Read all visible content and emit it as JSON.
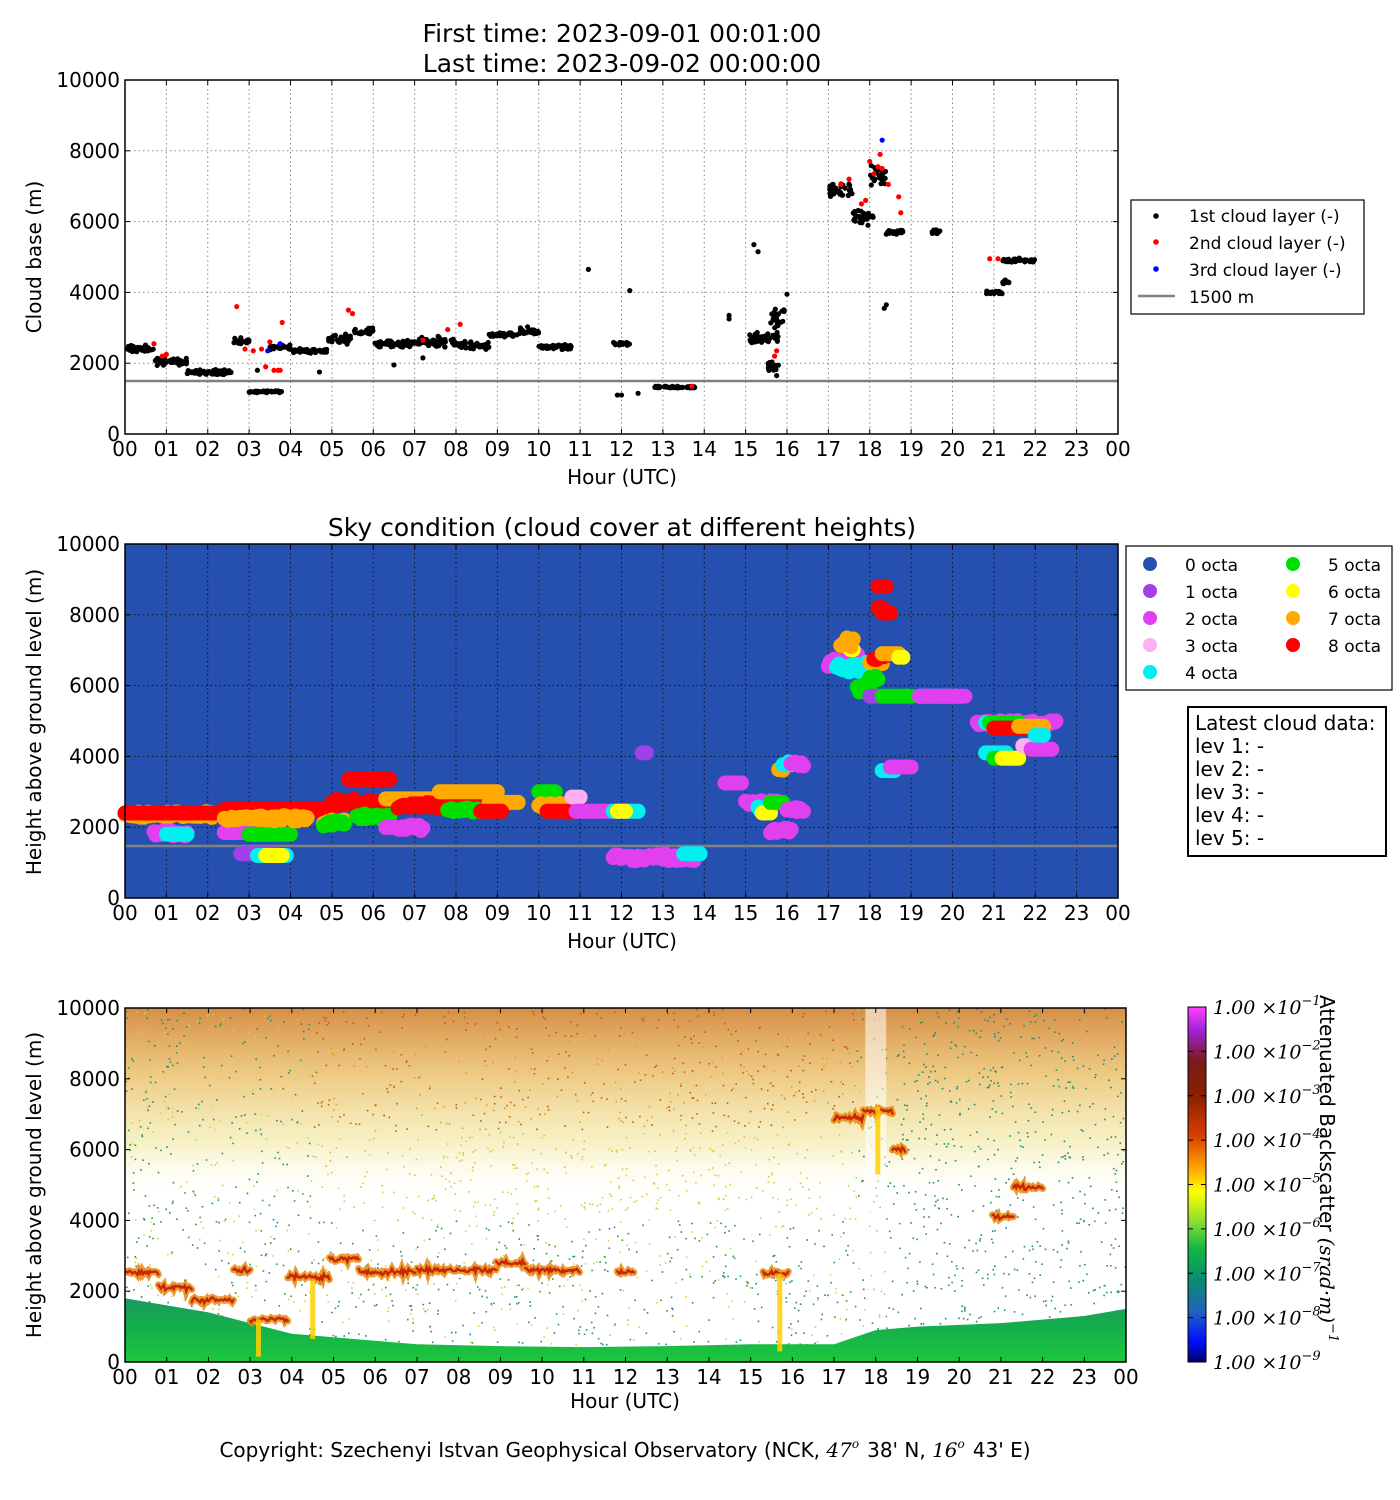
{
  "header": {
    "first_time": "First time: 2023-09-01 00:01:00",
    "last_time": "Last time: 2023-09-02 00:00:00"
  },
  "x_ticks": [
    "00",
    "01",
    "02",
    "03",
    "04",
    "05",
    "06",
    "07",
    "08",
    "09",
    "10",
    "11",
    "12",
    "13",
    "14",
    "15",
    "16",
    "17",
    "18",
    "19",
    "20",
    "21",
    "22",
    "23",
    "00"
  ],
  "y_ticks": [
    "0",
    "2000",
    "4000",
    "6000",
    "8000",
    "10000"
  ],
  "xlabel": "Hour (UTC)",
  "panel1": {
    "ylabel": "Cloud base (m)",
    "legend": [
      "1st cloud layer (-)",
      "2nd cloud layer (-)",
      "3rd cloud layer (-)",
      "1500 m"
    ]
  },
  "panel2": {
    "title": "Sky condition (cloud cover at different heights)",
    "ylabel": "Height above ground level (m)",
    "legend": [
      "0 octa",
      "1 octa",
      "2 octa",
      "3 octa",
      "4 octa",
      "5 octa",
      "6 octa",
      "7 octa",
      "8 octa"
    ],
    "latest": [
      "Latest cloud data:",
      "lev 1: -",
      "lev 2: -",
      "lev 3: -",
      "lev 4: -",
      "lev 5: -"
    ]
  },
  "panel3": {
    "ylabel": "Height above ground level (m)",
    "colorbar_label": "Attenuated Backscatter",
    "colorbar_unit": "(srad·m)",
    "colorbar_exp": "−1",
    "colorbar_ticks": [
      {
        "mant": "1.00",
        "exp": "−1"
      },
      {
        "mant": "1.00",
        "exp": "−2"
      },
      {
        "mant": "1.00",
        "exp": "−3"
      },
      {
        "mant": "1.00",
        "exp": "−4"
      },
      {
        "mant": "1.00",
        "exp": "−5"
      },
      {
        "mant": "1.00",
        "exp": "−6"
      },
      {
        "mant": "1.00",
        "exp": "−7"
      },
      {
        "mant": "1.00",
        "exp": "−8"
      },
      {
        "mant": "1.00",
        "exp": "−9"
      }
    ]
  },
  "copyright": {
    "a": "Copyright: Szechenyi Istvan Geophysical Observatory (NCK,",
    "lat_deg": "47",
    "lat_min": "38' N,",
    "lon_deg": "16",
    "lon_min": "43' E)"
  },
  "colors": {
    "layer1": "#000000",
    "layer2": "#ff0000",
    "layer3": "#0000ff",
    "ref_line": "#808080",
    "sky_bg": "#2650b0",
    "octa": [
      "#2650b0",
      "#a040e8",
      "#e040f0",
      "#ffb0f0",
      "#00f0f0",
      "#00e000",
      "#ffff00",
      "#ffaa00",
      "#ff0000"
    ]
  },
  "chart_data": [
    {
      "type": "scatter",
      "title": "",
      "xlabel": "Hour (UTC)",
      "ylabel": "Cloud base (m)",
      "xlim": [
        0,
        24
      ],
      "ylim": [
        0,
        10000
      ],
      "grid": true,
      "legend_position": "right",
      "reference_line": {
        "name": "1500 m",
        "y": 1500
      },
      "series": [
        {
          "name": "1st cloud layer (-)",
          "segments": [
            [
              0.0,
              0.7,
              2400,
              150
            ],
            [
              0.7,
              1.5,
              2050,
              150
            ],
            [
              1.5,
              2.6,
              1750,
              100
            ],
            [
              2.6,
              3.0,
              2600,
              150
            ],
            [
              3.0,
              3.8,
              1200,
              40
            ],
            [
              3.5,
              4.0,
              2450,
              100
            ],
            [
              4.0,
              4.9,
              2350,
              80
            ],
            [
              4.9,
              5.5,
              2700,
              200
            ],
            [
              5.5,
              6.0,
              2900,
              150
            ],
            [
              6.0,
              7.0,
              2550,
              120
            ],
            [
              7.0,
              8.0,
              2600,
              200
            ],
            [
              8.0,
              8.8,
              2500,
              150
            ],
            [
              8.8,
              9.5,
              2800,
              80
            ],
            [
              9.5,
              10.0,
              2900,
              150
            ],
            [
              10.0,
              10.8,
              2450,
              100
            ],
            [
              11.8,
              12.2,
              2550,
              80
            ],
            [
              12.8,
              13.8,
              1320,
              40
            ],
            [
              15.1,
              15.8,
              2700,
              250
            ],
            [
              15.5,
              15.8,
              1900,
              250
            ],
            [
              15.6,
              15.95,
              3300,
              500
            ],
            [
              17.0,
              17.6,
              6900,
              300
            ],
            [
              17.6,
              18.1,
              6100,
              300
            ],
            [
              18.0,
              18.4,
              7300,
              500
            ],
            [
              18.4,
              18.8,
              5700,
              100
            ],
            [
              19.5,
              19.7,
              5700,
              80
            ],
            [
              20.8,
              21.2,
              4000,
              100
            ],
            [
              21.2,
              22.0,
              4900,
              80
            ],
            [
              21.2,
              21.4,
              4300,
              100
            ]
          ],
          "extra": [
            [
              11.2,
              4650
            ],
            [
              12.2,
              4050
            ],
            [
              11.9,
              1100
            ],
            [
              12.0,
              1100
            ],
            [
              12.4,
              1150
            ],
            [
              14.6,
              3350
            ],
            [
              14.6,
              3250
            ],
            [
              15.2,
              5350
            ],
            [
              15.3,
              5150
            ],
            [
              15.1,
              2800
            ],
            [
              18.35,
              3550
            ],
            [
              18.4,
              3650
            ],
            [
              16.0,
              3950
            ],
            [
              15.75,
              1650
            ],
            [
              4.7,
              1750
            ],
            [
              6.5,
              1950
            ],
            [
              7.2,
              2150
            ],
            [
              3.2,
              1800
            ]
          ]
        },
        {
          "name": "2nd cloud layer (-)",
          "points": [
            [
              0.7,
              2550
            ],
            [
              0.9,
              2200
            ],
            [
              1.0,
              2250
            ],
            [
              2.7,
              3600
            ],
            [
              2.9,
              2400
            ],
            [
              3.1,
              2350
            ],
            [
              3.3,
              2400
            ],
            [
              3.5,
              2600
            ],
            [
              3.4,
              1900
            ],
            [
              3.6,
              1800
            ],
            [
              3.7,
              1800
            ],
            [
              3.75,
              1800
            ],
            [
              3.8,
              3150
            ],
            [
              5.4,
              3500
            ],
            [
              5.5,
              3400
            ],
            [
              7.2,
              2650
            ],
            [
              7.8,
              2950
            ],
            [
              8.1,
              3100
            ],
            [
              13.7,
              1350
            ],
            [
              15.7,
              2200
            ],
            [
              15.75,
              2350
            ],
            [
              17.3,
              7050
            ],
            [
              17.5,
              7200
            ],
            [
              17.8,
              6500
            ],
            [
              17.9,
              6600
            ],
            [
              18.0,
              7700
            ],
            [
              18.1,
              7350
            ],
            [
              18.2,
              7550
            ],
            [
              18.25,
              7900
            ],
            [
              18.3,
              7500
            ],
            [
              18.45,
              7050
            ],
            [
              18.7,
              6700
            ],
            [
              18.75,
              6250
            ],
            [
              20.9,
              4950
            ],
            [
              21.1,
              4950
            ]
          ]
        },
        {
          "name": "3rd cloud layer (-)",
          "points": [
            [
              3.45,
              2350
            ],
            [
              3.75,
              2550
            ],
            [
              18.3,
              8300
            ]
          ]
        }
      ]
    },
    {
      "type": "scatter",
      "title": "Sky condition (cloud cover at different heights)",
      "xlabel": "Hour (UTC)",
      "ylabel": "Height above ground level (m)",
      "xlim": [
        0,
        24
      ],
      "ylim": [
        0,
        10000
      ],
      "grid": true,
      "legend_position": "right",
      "reference_line": {
        "name": "",
        "y": 1500
      },
      "categories": [
        "0 octa",
        "1 octa",
        "2 octa",
        "3 octa",
        "4 octa",
        "5 octa",
        "6 octa",
        "7 octa",
        "8 octa"
      ],
      "segments": [
        [
          2,
          0.7,
          1.5,
          1850,
          1
        ],
        [
          4,
          1.0,
          1.5,
          1800,
          0
        ],
        [
          7,
          0.0,
          2.7,
          2350,
          1
        ],
        [
          8,
          0.0,
          2.4,
          2400,
          0
        ],
        [
          2,
          2.4,
          3.2,
          1850,
          0
        ],
        [
          1,
          2.8,
          3.6,
          1250,
          0
        ],
        [
          4,
          3.2,
          3.9,
          1200,
          0
        ],
        [
          6,
          3.4,
          3.8,
          1200,
          0
        ],
        [
          5,
          3.0,
          4.0,
          1800,
          0
        ],
        [
          8,
          2.4,
          5.0,
          2500,
          0
        ],
        [
          7,
          2.4,
          4.4,
          2250,
          1
        ],
        [
          7,
          4.8,
          5.3,
          2150,
          1
        ],
        [
          5,
          4.8,
          5.3,
          2100,
          1
        ],
        [
          8,
          5.0,
          6.2,
          2700,
          1
        ],
        [
          8,
          5.4,
          6.4,
          3350,
          0
        ],
        [
          5,
          5.6,
          6.4,
          2300,
          1
        ],
        [
          2,
          6.3,
          7.2,
          2000,
          1
        ],
        [
          7,
          6.3,
          7.8,
          2800,
          0
        ],
        [
          8,
          6.6,
          8.8,
          2600,
          1
        ],
        [
          7,
          7.6,
          9.0,
          3000,
          0
        ],
        [
          5,
          7.8,
          8.6,
          2500,
          1
        ],
        [
          7,
          8.8,
          9.5,
          2700,
          0
        ],
        [
          8,
          8.6,
          9.1,
          2450,
          0
        ],
        [
          5,
          10.0,
          10.4,
          3000,
          0
        ],
        [
          7,
          10.0,
          10.8,
          2600,
          1
        ],
        [
          8,
          10.2,
          10.9,
          2450,
          0
        ],
        [
          3,
          10.8,
          11.0,
          2850,
          0
        ],
        [
          2,
          10.9,
          12.4,
          2450,
          0
        ],
        [
          4,
          11.8,
          12.4,
          2450,
          0
        ],
        [
          6,
          11.9,
          12.1,
          2450,
          0
        ],
        [
          2,
          11.8,
          13.8,
          1150,
          1
        ],
        [
          4,
          13.5,
          13.9,
          1250,
          0
        ],
        [
          1,
          12.5,
          12.6,
          4100,
          0
        ],
        [
          2,
          14.5,
          14.9,
          3250,
          0
        ],
        [
          2,
          15.0,
          15.8,
          2700,
          1
        ],
        [
          4,
          15.3,
          15.6,
          2500,
          1
        ],
        [
          6,
          15.4,
          15.6,
          2400,
          0
        ],
        [
          5,
          15.6,
          15.9,
          2700,
          0
        ],
        [
          7,
          15.8,
          15.9,
          3600,
          1
        ],
        [
          2,
          15.6,
          16.1,
          1900,
          1
        ],
        [
          4,
          15.9,
          16.1,
          3800,
          1
        ],
        [
          2,
          16.0,
          16.4,
          2500,
          1
        ],
        [
          2,
          16.1,
          16.4,
          3800,
          1
        ],
        [
          2,
          17.0,
          17.8,
          6700,
          2
        ],
        [
          4,
          17.2,
          17.9,
          6500,
          2
        ],
        [
          6,
          17.4,
          17.6,
          7000,
          2
        ],
        [
          7,
          17.3,
          17.6,
          7200,
          2
        ],
        [
          5,
          17.7,
          18.0,
          5950,
          2
        ],
        [
          7,
          18.0,
          18.3,
          6600,
          1
        ],
        [
          8,
          18.1,
          18.4,
          6800,
          1
        ],
        [
          5,
          18.0,
          18.2,
          6200,
          1
        ],
        [
          7,
          18.3,
          18.7,
          6900,
          0
        ],
        [
          6,
          18.7,
          18.8,
          6800,
          0
        ],
        [
          8,
          18.2,
          18.4,
          8800,
          0
        ],
        [
          8,
          18.3,
          18.5,
          8050,
          0
        ],
        [
          8,
          18.2,
          18.3,
          8200,
          0
        ],
        [
          1,
          18.0,
          18.3,
          5700,
          0
        ],
        [
          5,
          18.3,
          19.0,
          5700,
          0
        ],
        [
          4,
          18.3,
          18.6,
          3600,
          0
        ],
        [
          2,
          18.5,
          19.0,
          3700,
          0
        ],
        [
          4,
          19.2,
          20.1,
          5700,
          0
        ],
        [
          2,
          19.2,
          20.3,
          5700,
          0
        ],
        [
          2,
          20.6,
          22.5,
          4950,
          1
        ],
        [
          4,
          20.8,
          21.5,
          4950,
          0
        ],
        [
          5,
          20.9,
          21.6,
          4950,
          0
        ],
        [
          8,
          21.0,
          22.0,
          4800,
          0
        ],
        [
          7,
          21.6,
          22.2,
          4850,
          0
        ],
        [
          4,
          20.8,
          21.3,
          4100,
          0
        ],
        [
          5,
          21.0,
          21.6,
          3950,
          0
        ],
        [
          6,
          21.2,
          21.6,
          3950,
          0
        ],
        [
          3,
          21.7,
          22.0,
          4300,
          0
        ],
        [
          2,
          21.9,
          22.4,
          4200,
          0
        ],
        [
          4,
          22.0,
          22.2,
          4600,
          0
        ]
      ]
    },
    {
      "type": "heatmap",
      "title": "",
      "xlabel": "Hour (UTC)",
      "ylabel": "Height above ground level (m)",
      "xlim": [
        0,
        24
      ],
      "ylim": [
        0,
        10000
      ],
      "colorbar_label": "Attenuated Backscatter (srad·m)^-1",
      "colorbar_scale": "log",
      "colorbar_range": [
        1e-09,
        0.1
      ],
      "features": [
        {
          "t0": 0.0,
          "t1": 0.8,
          "h": 2550,
          "note": "cloud"
        },
        {
          "t0": 0.8,
          "t1": 1.6,
          "h": 2100
        },
        {
          "t0": 1.6,
          "t1": 2.6,
          "h": 1750
        },
        {
          "t0": 2.6,
          "t1": 3.0,
          "h": 2600
        },
        {
          "t0": 3.0,
          "t1": 3.9,
          "h": 1200
        },
        {
          "t0": 3.9,
          "t1": 4.9,
          "h": 2400
        },
        {
          "t0": 4.9,
          "t1": 5.6,
          "h": 2900
        },
        {
          "t0": 5.6,
          "t1": 7.0,
          "h": 2550
        },
        {
          "t0": 7.0,
          "t1": 8.9,
          "h": 2600
        },
        {
          "t0": 8.9,
          "t1": 9.6,
          "h": 2800
        },
        {
          "t0": 9.6,
          "t1": 10.9,
          "h": 2600
        },
        {
          "t0": 11.8,
          "t1": 12.2,
          "h": 2550
        },
        {
          "t0": 15.3,
          "t1": 15.9,
          "h": 2500
        },
        {
          "t0": 17.0,
          "t1": 17.7,
          "h": 6900
        },
        {
          "t0": 17.7,
          "t1": 18.4,
          "h": 7100
        },
        {
          "t0": 18.4,
          "t1": 18.7,
          "h": 6000
        },
        {
          "t0": 20.8,
          "t1": 21.3,
          "h": 4100
        },
        {
          "t0": 21.3,
          "t1": 22.0,
          "h": 4950
        }
      ]
    }
  ]
}
